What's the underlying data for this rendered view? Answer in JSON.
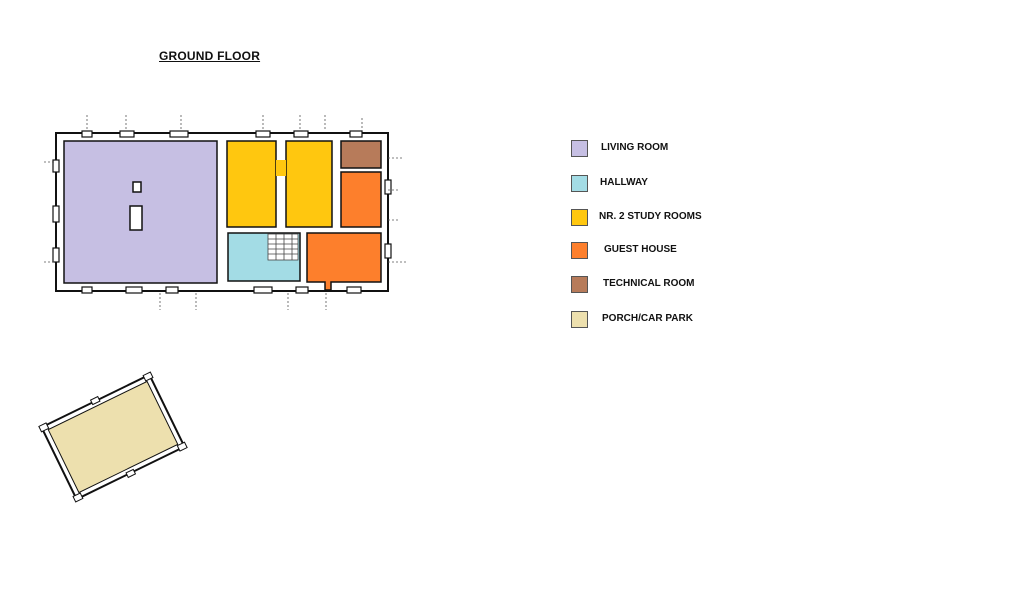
{
  "title": "GROUND FLOOR",
  "colors": {
    "living_room": "#c6bfe3",
    "hallway": "#a3dce5",
    "study_rooms": "#ffc70f",
    "guest_house": "#fd7f2c",
    "technical_room": "#b77b5a",
    "porch": "#ede0ae",
    "walls": "#ffffff",
    "wall_outline": "#111111"
  },
  "legend": [
    {
      "label": "LIVING ROOM",
      "color": "#c6bfe3"
    },
    {
      "label": "HALLWAY",
      "color": "#a3dce5"
    },
    {
      "label": "NR. 2 STUDY ROOMS",
      "color": "#ffc70f"
    },
    {
      "label": "GUEST HOUSE",
      "color": "#fd7f2c"
    },
    {
      "label": "TECHNICAL ROOM",
      "color": "#b77b5a"
    },
    {
      "label": "PORCH/CAR PARK",
      "color": "#ede0ae"
    }
  ]
}
